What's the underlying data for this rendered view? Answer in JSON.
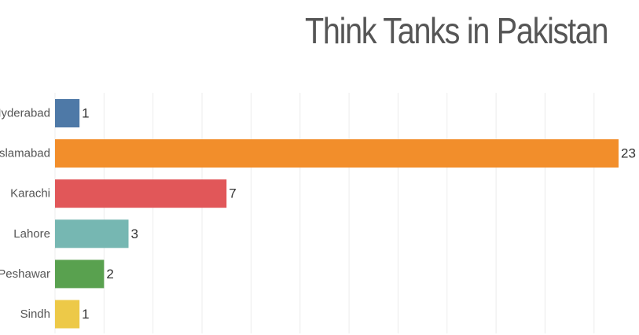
{
  "chart_data": {
    "type": "bar",
    "orientation": "horizontal",
    "title": "Think Tanks in Pakistan",
    "categories": [
      "Hyderabad",
      "Islamabad",
      "Karachi",
      "Lahore",
      "Peshawar",
      "Sindh"
    ],
    "values": [
      1,
      23,
      7,
      3,
      2,
      1
    ],
    "value_labels": [
      "1",
      "23",
      "7",
      "3",
      "2",
      "1"
    ],
    "colors": [
      "#4e79a7",
      "#f28e2b",
      "#e15759",
      "#76b7b2",
      "#59a14f",
      "#edc948"
    ],
    "xlim": [
      0,
      23
    ],
    "x_grid_step": 2,
    "grid": true,
    "legend": "none",
    "xlabel": "",
    "ylabel": ""
  }
}
